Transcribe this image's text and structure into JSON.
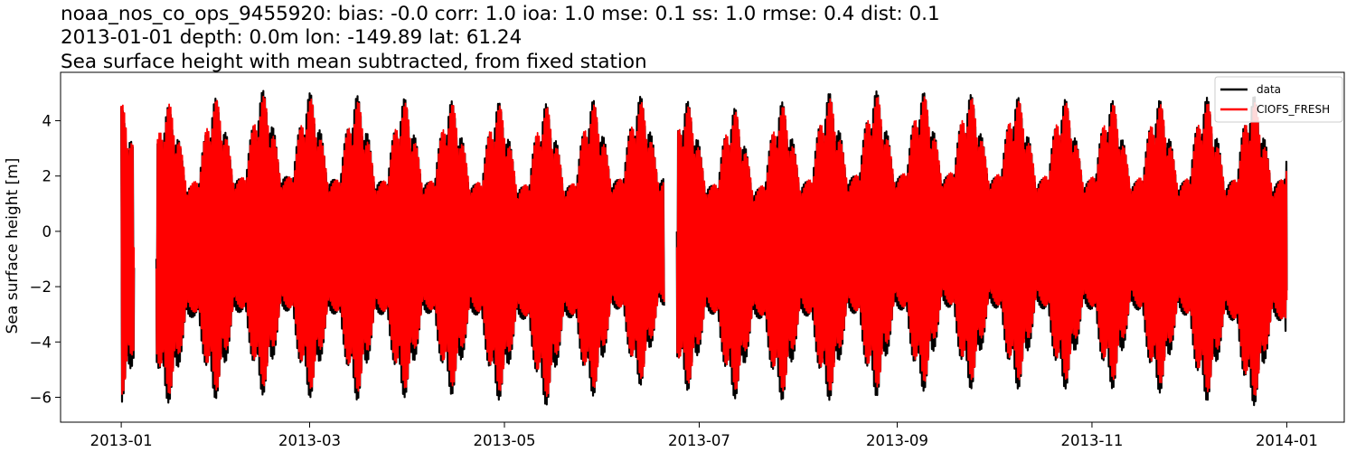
{
  "chart_data": {
    "type": "line",
    "title_lines": [
      "noaa_nos_co_ops_9455920: bias: -0.0  corr: 1.0  ioa: 1.0  mse: 0.1  ss: 1.0  rmse: 0.4  dist: 0.1",
      "2013-01-01 depth: 0.0m lon: -149.89 lat: 61.24",
      "Sea surface height with mean subtracted, from fixed station"
    ],
    "xlabel": "",
    "ylabel": "Sea surface height [m]",
    "xlim": [
      "2012-12-13",
      "2014-01-19"
    ],
    "ylim": [
      -6.9,
      5.75
    ],
    "x_ticks": [
      "2013-01",
      "2013-03",
      "2013-05",
      "2013-07",
      "2013-09",
      "2013-11",
      "2014-01"
    ],
    "y_ticks": [
      -6,
      -4,
      -2,
      0,
      2,
      4
    ],
    "grid": false,
    "legend": {
      "position": "top-right",
      "entries": [
        "data",
        "CIOFS_FRESH"
      ]
    },
    "series": [
      {
        "name": "data",
        "color": "#000000",
        "time_range": [
          "2013-01-01",
          "2014-01-01"
        ],
        "gaps": [
          [
            "2013-01-05",
            "2013-01-12"
          ],
          [
            "2013-06-20",
            "2013-06-24"
          ]
        ],
        "max_envelope_by_month": {
          "2013-01": 4.5,
          "2013-02": 5.1,
          "2013-03": 4.9,
          "2013-04": 4.7,
          "2013-05": 4.6,
          "2013-06": 4.9,
          "2013-07": 4.4,
          "2013-08": 5.1,
          "2013-09": 5.0,
          "2013-10": 4.8,
          "2013-11": 4.7,
          "2013-12": 4.9
        },
        "min_envelope_by_month": {
          "2013-01": -6.2,
          "2013-02": -5.9,
          "2013-03": -6.1,
          "2013-04": -5.9,
          "2013-05": -6.3,
          "2013-06": -5.5,
          "2013-07": -6.1,
          "2013-08": -6.1,
          "2013-09": -5.7,
          "2013-10": -5.7,
          "2013-11": -5.7,
          "2013-12": -6.3
        }
      },
      {
        "name": "CIOFS_FRESH",
        "color": "#ff0000",
        "time_range": [
          "2013-01-01",
          "2014-01-01"
        ],
        "gaps": [
          [
            "2013-01-05",
            "2013-01-12"
          ],
          [
            "2013-06-20",
            "2013-06-24"
          ]
        ],
        "max_envelope_by_month": {
          "2013-01": 4.6,
          "2013-02": 4.9,
          "2013-03": 4.7,
          "2013-04": 4.6,
          "2013-05": 4.5,
          "2013-06": 4.7,
          "2013-07": 4.3,
          "2013-08": 4.9,
          "2013-09": 4.9,
          "2013-10": 4.7,
          "2013-11": 4.6,
          "2013-12": 4.7
        },
        "min_envelope_by_month": {
          "2013-01": -5.9,
          "2013-02": -5.6,
          "2013-03": -5.8,
          "2013-04": -5.6,
          "2013-05": -6.0,
          "2013-06": -5.3,
          "2013-07": -5.8,
          "2013-08": -5.8,
          "2013-09": -5.4,
          "2013-10": -5.4,
          "2013-11": -5.4,
          "2013-12": -6.0
        }
      }
    ]
  }
}
